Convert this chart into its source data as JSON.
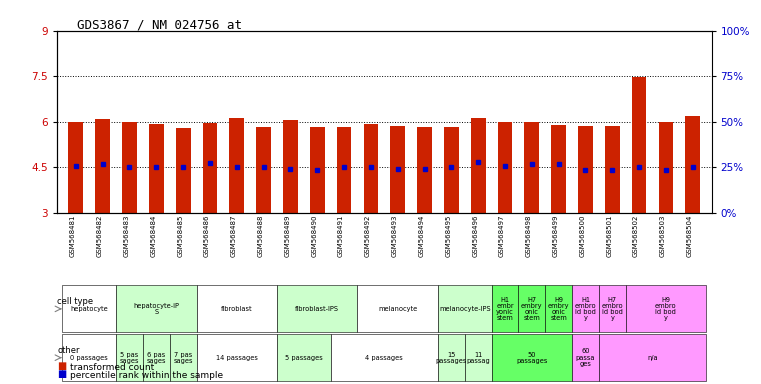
{
  "title": "GDS3867 / NM_024756_at",
  "samples": [
    "GSM568481",
    "GSM568482",
    "GSM568483",
    "GSM568484",
    "GSM568485",
    "GSM568486",
    "GSM568487",
    "GSM568488",
    "GSM568489",
    "GSM568490",
    "GSM568491",
    "GSM568492",
    "GSM568493",
    "GSM568494",
    "GSM568495",
    "GSM568496",
    "GSM568497",
    "GSM568498",
    "GSM568499",
    "GSM568500",
    "GSM568501",
    "GSM568502",
    "GSM568503",
    "GSM568504"
  ],
  "bar_top": [
    5.98,
    6.08,
    6.0,
    5.93,
    5.78,
    5.95,
    6.12,
    5.82,
    6.05,
    5.82,
    5.83,
    5.93,
    5.87,
    5.82,
    5.83,
    6.12,
    5.98,
    6.0,
    5.88,
    5.85,
    5.85,
    7.48,
    5.98,
    6.18
  ],
  "bar_bottom": [
    3.0,
    3.0,
    3.0,
    3.0,
    3.0,
    3.0,
    3.0,
    3.0,
    3.0,
    3.0,
    3.0,
    3.0,
    3.0,
    3.0,
    3.0,
    3.0,
    3.0,
    3.0,
    3.0,
    3.0,
    3.0,
    3.0,
    3.0,
    3.0
  ],
  "blue_dot": [
    4.56,
    4.62,
    4.52,
    4.52,
    4.52,
    4.65,
    4.52,
    4.52,
    4.45,
    4.42,
    4.52,
    4.52,
    4.45,
    4.45,
    4.52,
    4.68,
    4.55,
    4.62,
    4.62,
    4.42,
    4.42,
    4.52,
    4.42,
    4.52
  ],
  "ylim": [
    3.0,
    9.0
  ],
  "yticks_left": [
    3,
    4.5,
    6,
    7.5,
    9
  ],
  "yticks_right_vals": [
    3,
    4.5,
    6,
    7.5,
    9
  ],
  "yticks_right_labels": [
    "0%",
    "25%",
    "50%",
    "75%",
    "100%"
  ],
  "dotted_lines": [
    4.5,
    6.0,
    7.5
  ],
  "bar_color": "#cc2200",
  "dot_color": "#0000cc",
  "cell_type_groups": [
    {
      "label": "hepatocyte",
      "start": 0,
      "end": 1,
      "color": "#ffffff"
    },
    {
      "label": "hepatocyte-iP\nS",
      "start": 2,
      "end": 4,
      "color": "#ccffcc"
    },
    {
      "label": "fibroblast",
      "start": 5,
      "end": 7,
      "color": "#ffffff"
    },
    {
      "label": "fibroblast-IPS",
      "start": 8,
      "end": 10,
      "color": "#ccffcc"
    },
    {
      "label": "melanocyte",
      "start": 11,
      "end": 13,
      "color": "#ffffff"
    },
    {
      "label": "melanocyte-IPS",
      "start": 14,
      "end": 15,
      "color": "#ccffcc"
    },
    {
      "label": "H1\nembr\nyonic\nstem",
      "start": 16,
      "end": 16,
      "color": "#66ff66"
    },
    {
      "label": "H7\nembry\nonic\nstem",
      "start": 17,
      "end": 17,
      "color": "#66ff66"
    },
    {
      "label": "H9\nembry\nonic\nstem",
      "start": 18,
      "end": 18,
      "color": "#66ff66"
    },
    {
      "label": "H1\nembro\nid bod\ny",
      "start": 19,
      "end": 19,
      "color": "#ff99ff"
    },
    {
      "label": "H7\nembro\nid bod\ny",
      "start": 20,
      "end": 20,
      "color": "#ff99ff"
    },
    {
      "label": "H9\nembro\nid bod\ny",
      "start": 21,
      "end": 23,
      "color": "#ff99ff"
    }
  ],
  "other_groups": [
    {
      "label": "0 passages",
      "start": 0,
      "end": 1,
      "color": "#ffffff"
    },
    {
      "label": "5 pas\nsages",
      "start": 2,
      "end": 2,
      "color": "#ccffcc"
    },
    {
      "label": "6 pas\nsages",
      "start": 3,
      "end": 3,
      "color": "#ccffcc"
    },
    {
      "label": "7 pas\nsages",
      "start": 4,
      "end": 4,
      "color": "#ccffcc"
    },
    {
      "label": "14 passages",
      "start": 5,
      "end": 7,
      "color": "#ffffff"
    },
    {
      "label": "5 passages",
      "start": 8,
      "end": 9,
      "color": "#ccffcc"
    },
    {
      "label": "4 passages",
      "start": 10,
      "end": 13,
      "color": "#ffffff"
    },
    {
      "label": "15\npassages",
      "start": 14,
      "end": 14,
      "color": "#ccffcc"
    },
    {
      "label": "11\npassag",
      "start": 15,
      "end": 15,
      "color": "#ccffcc"
    },
    {
      "label": "50\npassages",
      "start": 16,
      "end": 18,
      "color": "#66ff66"
    },
    {
      "label": "60\npassa\nges",
      "start": 19,
      "end": 19,
      "color": "#ff99ff"
    },
    {
      "label": "n/a",
      "start": 20,
      "end": 23,
      "color": "#ff99ff"
    }
  ],
  "bar_color_red": "#cc2200",
  "dot_color_blue": "#0000cc",
  "tick_color_left": "#cc0000",
  "tick_color_right": "#0000cc",
  "background_color": "#ffffff"
}
